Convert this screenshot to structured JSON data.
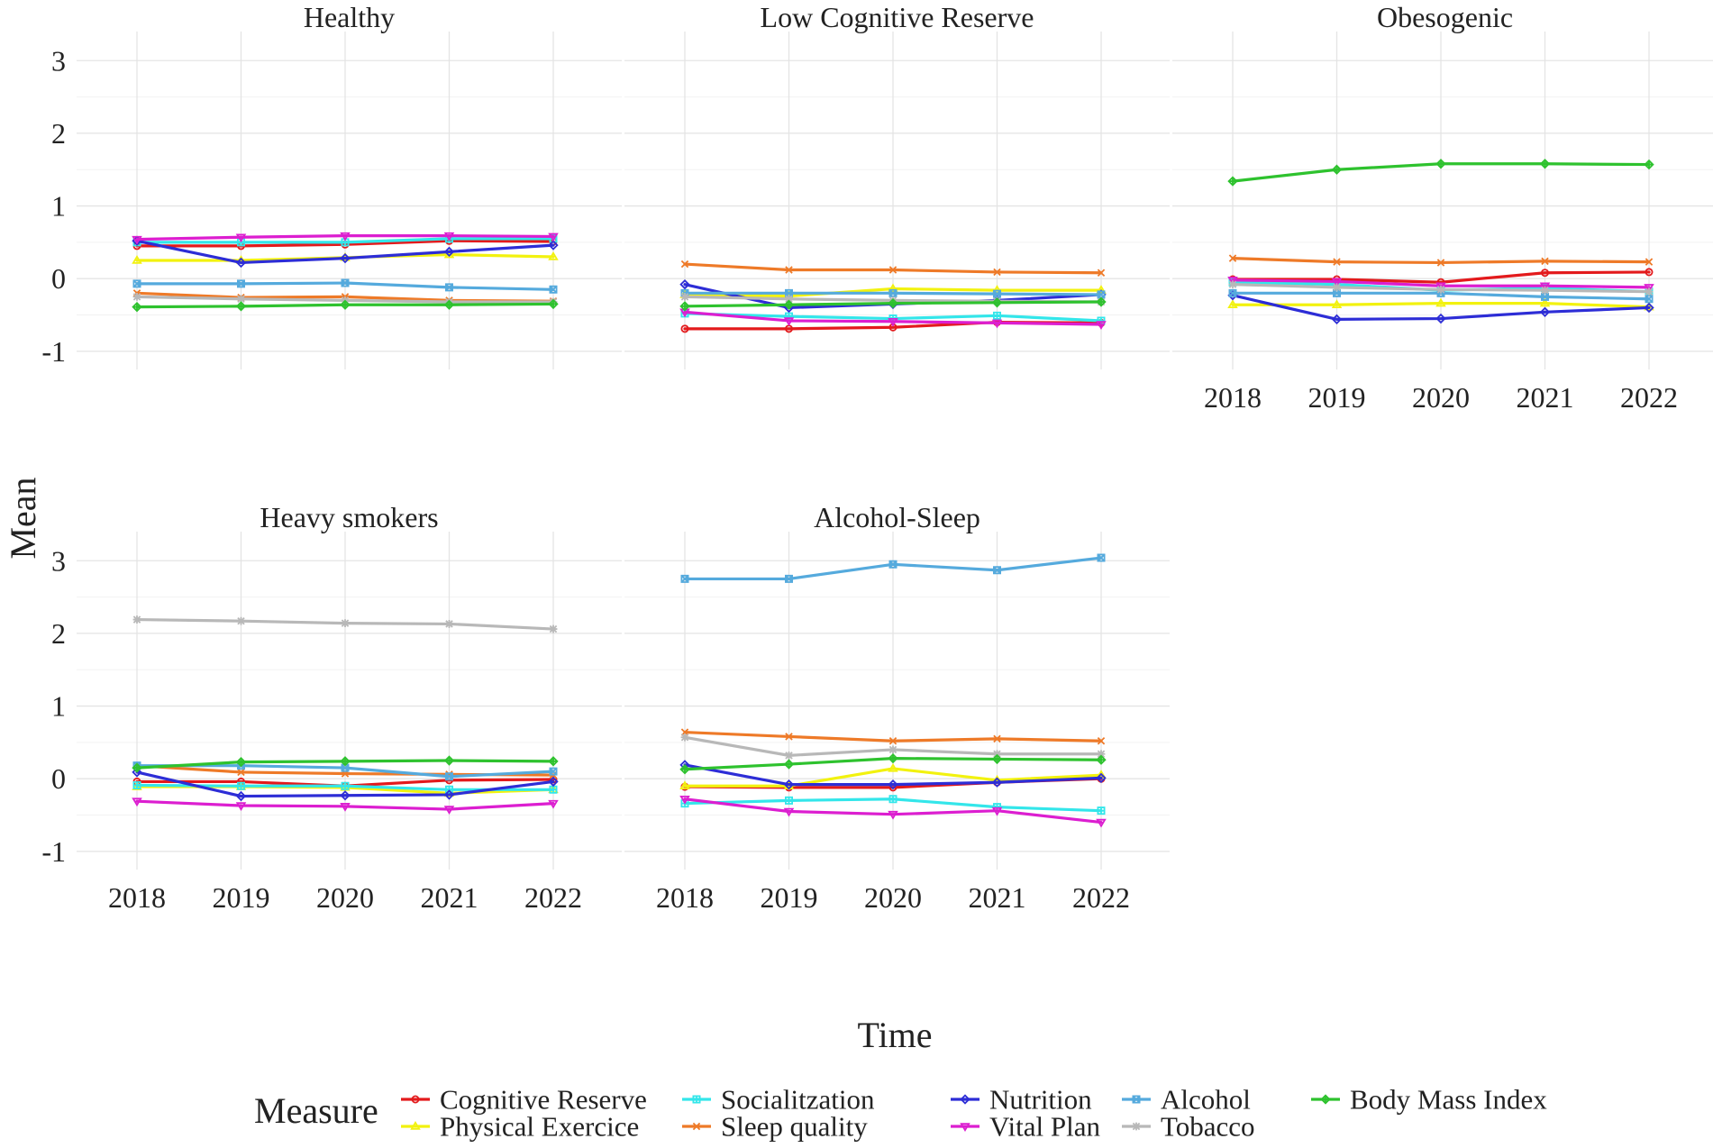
{
  "chart_data": {
    "type": "line",
    "layout": "facet-grid 3 columns x 2 rows",
    "xlabel": "Time",
    "ylabel": "Mean",
    "x": [
      2018,
      2019,
      2020,
      2021,
      2022
    ],
    "x_tick_labels": [
      "2018",
      "2019",
      "2020",
      "2021",
      "2022"
    ],
    "ylim": [
      -1.25,
      3.4
    ],
    "y_ticks": [
      -1,
      0,
      1,
      2,
      3
    ],
    "y_tick_labels": [
      "-1",
      "0",
      "1",
      "2",
      "3"
    ],
    "grid": true,
    "legend": {
      "title": "Measure",
      "position": "bottom",
      "entries": [
        {
          "name": "Cognitive Reserve",
          "color": "#e31a1c",
          "marker": "circle"
        },
        {
          "name": "Physical Exercice",
          "color": "#f2f20f",
          "marker": "triangle-up"
        },
        {
          "name": "Socialitzation",
          "color": "#33e6ea",
          "marker": "square-plus"
        },
        {
          "name": "Sleep quality",
          "color": "#ee7a28",
          "marker": "x"
        },
        {
          "name": "Nutrition",
          "color": "#2d2dd6",
          "marker": "diamond"
        },
        {
          "name": "Vital Plan",
          "color": "#dc1ed0",
          "marker": "triangle-down"
        },
        {
          "name": "Alcohol",
          "color": "#55aadd",
          "marker": "square-x"
        },
        {
          "name": "Tobacco",
          "color": "#b8b8b8",
          "marker": "asterisk"
        },
        {
          "name": "Body Mass Index",
          "color": "#2ec22e",
          "marker": "diamond-plus"
        }
      ]
    },
    "panels": [
      {
        "title": "Healthy",
        "series": [
          {
            "name": "Cognitive Reserve",
            "values": [
              0.45,
              0.45,
              0.47,
              0.52,
              0.51
            ]
          },
          {
            "name": "Physical Exercice",
            "values": [
              0.25,
              0.25,
              0.29,
              0.33,
              0.3
            ]
          },
          {
            "name": "Socialitzation",
            "values": [
              0.5,
              0.5,
              0.5,
              0.55,
              0.55
            ]
          },
          {
            "name": "Sleep quality",
            "values": [
              -0.2,
              -0.26,
              -0.25,
              -0.3,
              -0.31
            ]
          },
          {
            "name": "Nutrition",
            "values": [
              0.52,
              0.22,
              0.28,
              0.37,
              0.46
            ]
          },
          {
            "name": "Vital Plan",
            "values": [
              0.54,
              0.57,
              0.59,
              0.59,
              0.58
            ]
          },
          {
            "name": "Alcohol",
            "values": [
              -0.07,
              -0.07,
              -0.06,
              -0.12,
              -0.15
            ]
          },
          {
            "name": "Tobacco",
            "values": [
              -0.25,
              -0.28,
              -0.3,
              -0.32,
              -0.32
            ]
          },
          {
            "name": "Body Mass Index",
            "values": [
              -0.39,
              -0.38,
              -0.36,
              -0.36,
              -0.35
            ]
          }
        ]
      },
      {
        "title": "Low Cognitive Reserve",
        "series": [
          {
            "name": "Cognitive Reserve",
            "values": [
              -0.69,
              -0.69,
              -0.67,
              -0.6,
              -0.61
            ]
          },
          {
            "name": "Physical Exercice",
            "values": [
              -0.22,
              -0.24,
              -0.14,
              -0.16,
              -0.16
            ]
          },
          {
            "name": "Socialitzation",
            "values": [
              -0.48,
              -0.52,
              -0.55,
              -0.51,
              -0.58
            ]
          },
          {
            "name": "Sleep quality",
            "values": [
              0.2,
              0.12,
              0.12,
              0.09,
              0.08
            ]
          },
          {
            "name": "Nutrition",
            "values": [
              -0.08,
              -0.4,
              -0.35,
              -0.3,
              -0.22
            ]
          },
          {
            "name": "Vital Plan",
            "values": [
              -0.46,
              -0.58,
              -0.59,
              -0.61,
              -0.63
            ]
          },
          {
            "name": "Alcohol",
            "values": [
              -0.2,
              -0.2,
              -0.2,
              -0.21,
              -0.22
            ]
          },
          {
            "name": "Tobacco",
            "values": [
              -0.25,
              -0.28,
              -0.3,
              -0.31,
              -0.32
            ]
          },
          {
            "name": "Body Mass Index",
            "values": [
              -0.38,
              -0.36,
              -0.34,
              -0.33,
              -0.32
            ]
          }
        ]
      },
      {
        "title": "Obesogenic",
        "series": [
          {
            "name": "Cognitive Reserve",
            "values": [
              -0.01,
              -0.01,
              -0.05,
              0.08,
              0.09
            ]
          },
          {
            "name": "Physical Exercice",
            "values": [
              -0.36,
              -0.36,
              -0.34,
              -0.34,
              -0.39
            ]
          },
          {
            "name": "Socialitzation",
            "values": [
              -0.05,
              -0.08,
              -0.16,
              -0.13,
              -0.18
            ]
          },
          {
            "name": "Sleep quality",
            "values": [
              0.28,
              0.23,
              0.22,
              0.24,
              0.23
            ]
          },
          {
            "name": "Nutrition",
            "values": [
              -0.23,
              -0.56,
              -0.55,
              -0.46,
              -0.4
            ]
          },
          {
            "name": "Vital Plan",
            "values": [
              -0.02,
              -0.04,
              -0.1,
              -0.1,
              -0.12
            ]
          },
          {
            "name": "Alcohol",
            "values": [
              -0.2,
              -0.2,
              -0.2,
              -0.25,
              -0.28
            ]
          },
          {
            "name": "Tobacco",
            "values": [
              -0.08,
              -0.12,
              -0.15,
              -0.16,
              -0.18
            ]
          },
          {
            "name": "Body Mass Index",
            "values": [
              1.34,
              1.5,
              1.58,
              1.58,
              1.57
            ]
          }
        ]
      },
      {
        "title": "Heavy smokers",
        "series": [
          {
            "name": "Cognitive Reserve",
            "values": [
              -0.04,
              -0.04,
              -0.1,
              -0.02,
              -0.01
            ]
          },
          {
            "name": "Physical Exercice",
            "values": [
              -0.11,
              -0.11,
              -0.12,
              -0.2,
              -0.15
            ]
          },
          {
            "name": "Socialitzation",
            "values": [
              -0.09,
              -0.1,
              -0.1,
              -0.15,
              -0.15
            ]
          },
          {
            "name": "Sleep quality",
            "values": [
              0.18,
              0.09,
              0.07,
              0.06,
              0.05
            ]
          },
          {
            "name": "Nutrition",
            "values": [
              0.09,
              -0.24,
              -0.23,
              -0.22,
              -0.04
            ]
          },
          {
            "name": "Vital Plan",
            "values": [
              -0.31,
              -0.37,
              -0.38,
              -0.42,
              -0.34
            ]
          },
          {
            "name": "Alcohol",
            "values": [
              0.18,
              0.18,
              0.15,
              0.03,
              0.1
            ]
          },
          {
            "name": "Tobacco",
            "values": [
              2.19,
              2.17,
              2.14,
              2.13,
              2.06
            ]
          },
          {
            "name": "Body Mass Index",
            "values": [
              0.15,
              0.23,
              0.24,
              0.25,
              0.24
            ]
          }
        ]
      },
      {
        "title": "Alcohol-Sleep",
        "series": [
          {
            "name": "Cognitive Reserve",
            "values": [
              -0.11,
              -0.12,
              -0.12,
              -0.05,
              0.0
            ]
          },
          {
            "name": "Physical Exercice",
            "values": [
              -0.1,
              -0.1,
              0.14,
              -0.02,
              0.05
            ]
          },
          {
            "name": "Socialitzation",
            "values": [
              -0.34,
              -0.3,
              -0.28,
              -0.39,
              -0.44
            ]
          },
          {
            "name": "Sleep quality",
            "values": [
              0.64,
              0.58,
              0.52,
              0.55,
              0.52
            ]
          },
          {
            "name": "Nutrition",
            "values": [
              0.19,
              -0.08,
              -0.08,
              -0.05,
              0.01
            ]
          },
          {
            "name": "Vital Plan",
            "values": [
              -0.28,
              -0.45,
              -0.49,
              -0.44,
              -0.6
            ]
          },
          {
            "name": "Alcohol",
            "values": [
              2.75,
              2.75,
              2.95,
              2.87,
              3.04
            ]
          },
          {
            "name": "Tobacco",
            "values": [
              0.57,
              0.32,
              0.4,
              0.34,
              0.34
            ]
          },
          {
            "name": "Body Mass Index",
            "values": [
              0.13,
              0.2,
              0.28,
              0.27,
              0.26
            ]
          }
        ]
      }
    ]
  }
}
